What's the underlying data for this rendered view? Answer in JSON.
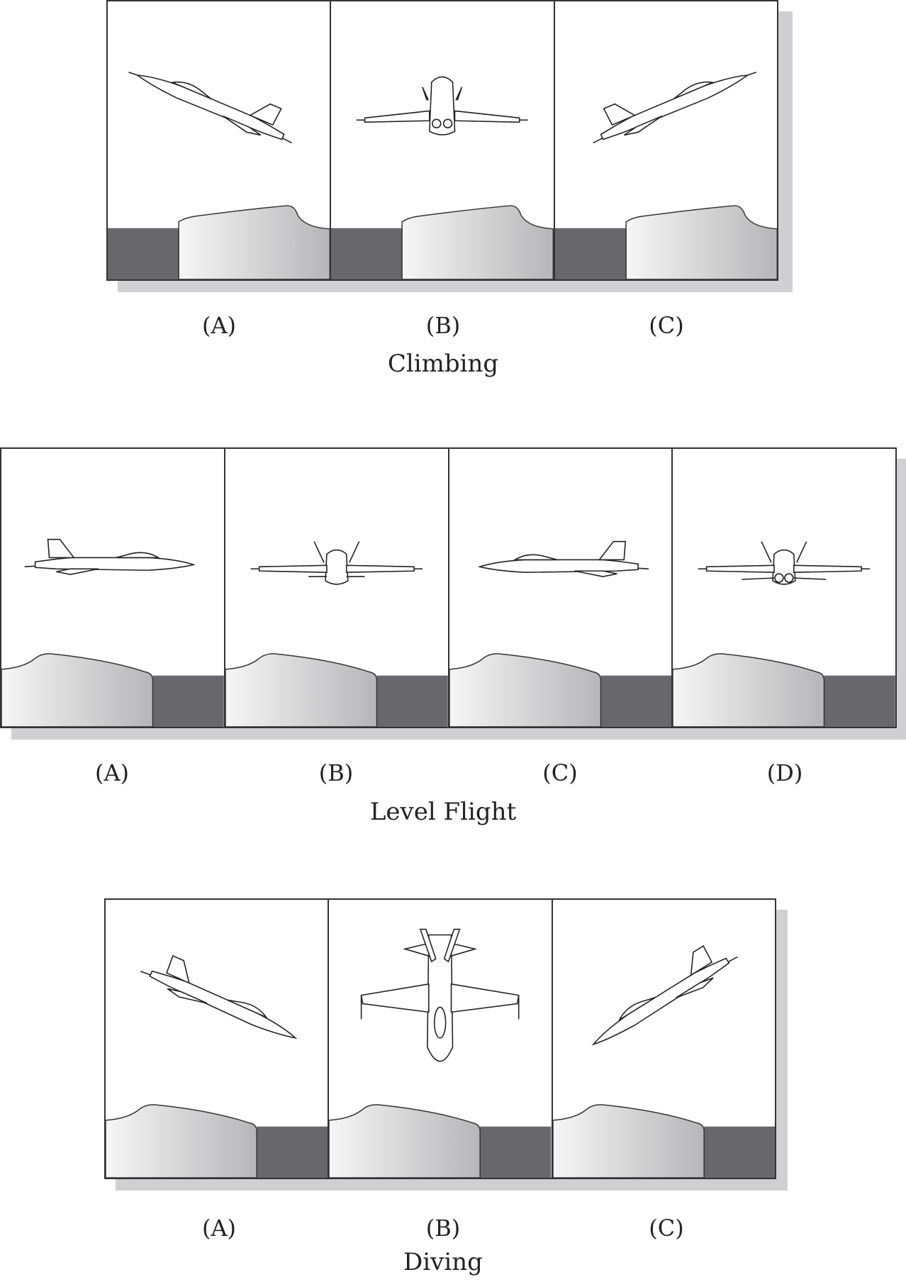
{
  "sections": [
    {
      "caption": "Climbing",
      "panels": [
        {
          "label": "(A)",
          "view": "side-right-climb"
        },
        {
          "label": "(B)",
          "view": "rear-climb"
        },
        {
          "label": "(C)",
          "view": "side-left-climb"
        }
      ]
    },
    {
      "caption": "Level Flight",
      "panels": [
        {
          "label": "(A)",
          "view": "side-right-level"
        },
        {
          "label": "(B)",
          "view": "front-level"
        },
        {
          "label": "(C)",
          "view": "side-left-level"
        },
        {
          "label": "(D)",
          "view": "rear-level"
        }
      ]
    },
    {
      "caption": "Diving",
      "panels": [
        {
          "label": "(A)",
          "view": "side-right-dive"
        },
        {
          "label": "(B)",
          "view": "top-dive"
        },
        {
          "label": "(C)",
          "view": "side-left-dive"
        }
      ]
    }
  ],
  "colors": {
    "ground_dark": "#68686c",
    "hill_light": "#f4f4f4",
    "hill_dark": "#b8b8ba",
    "shadow": "#d0d0d2",
    "outline": "#333333"
  }
}
